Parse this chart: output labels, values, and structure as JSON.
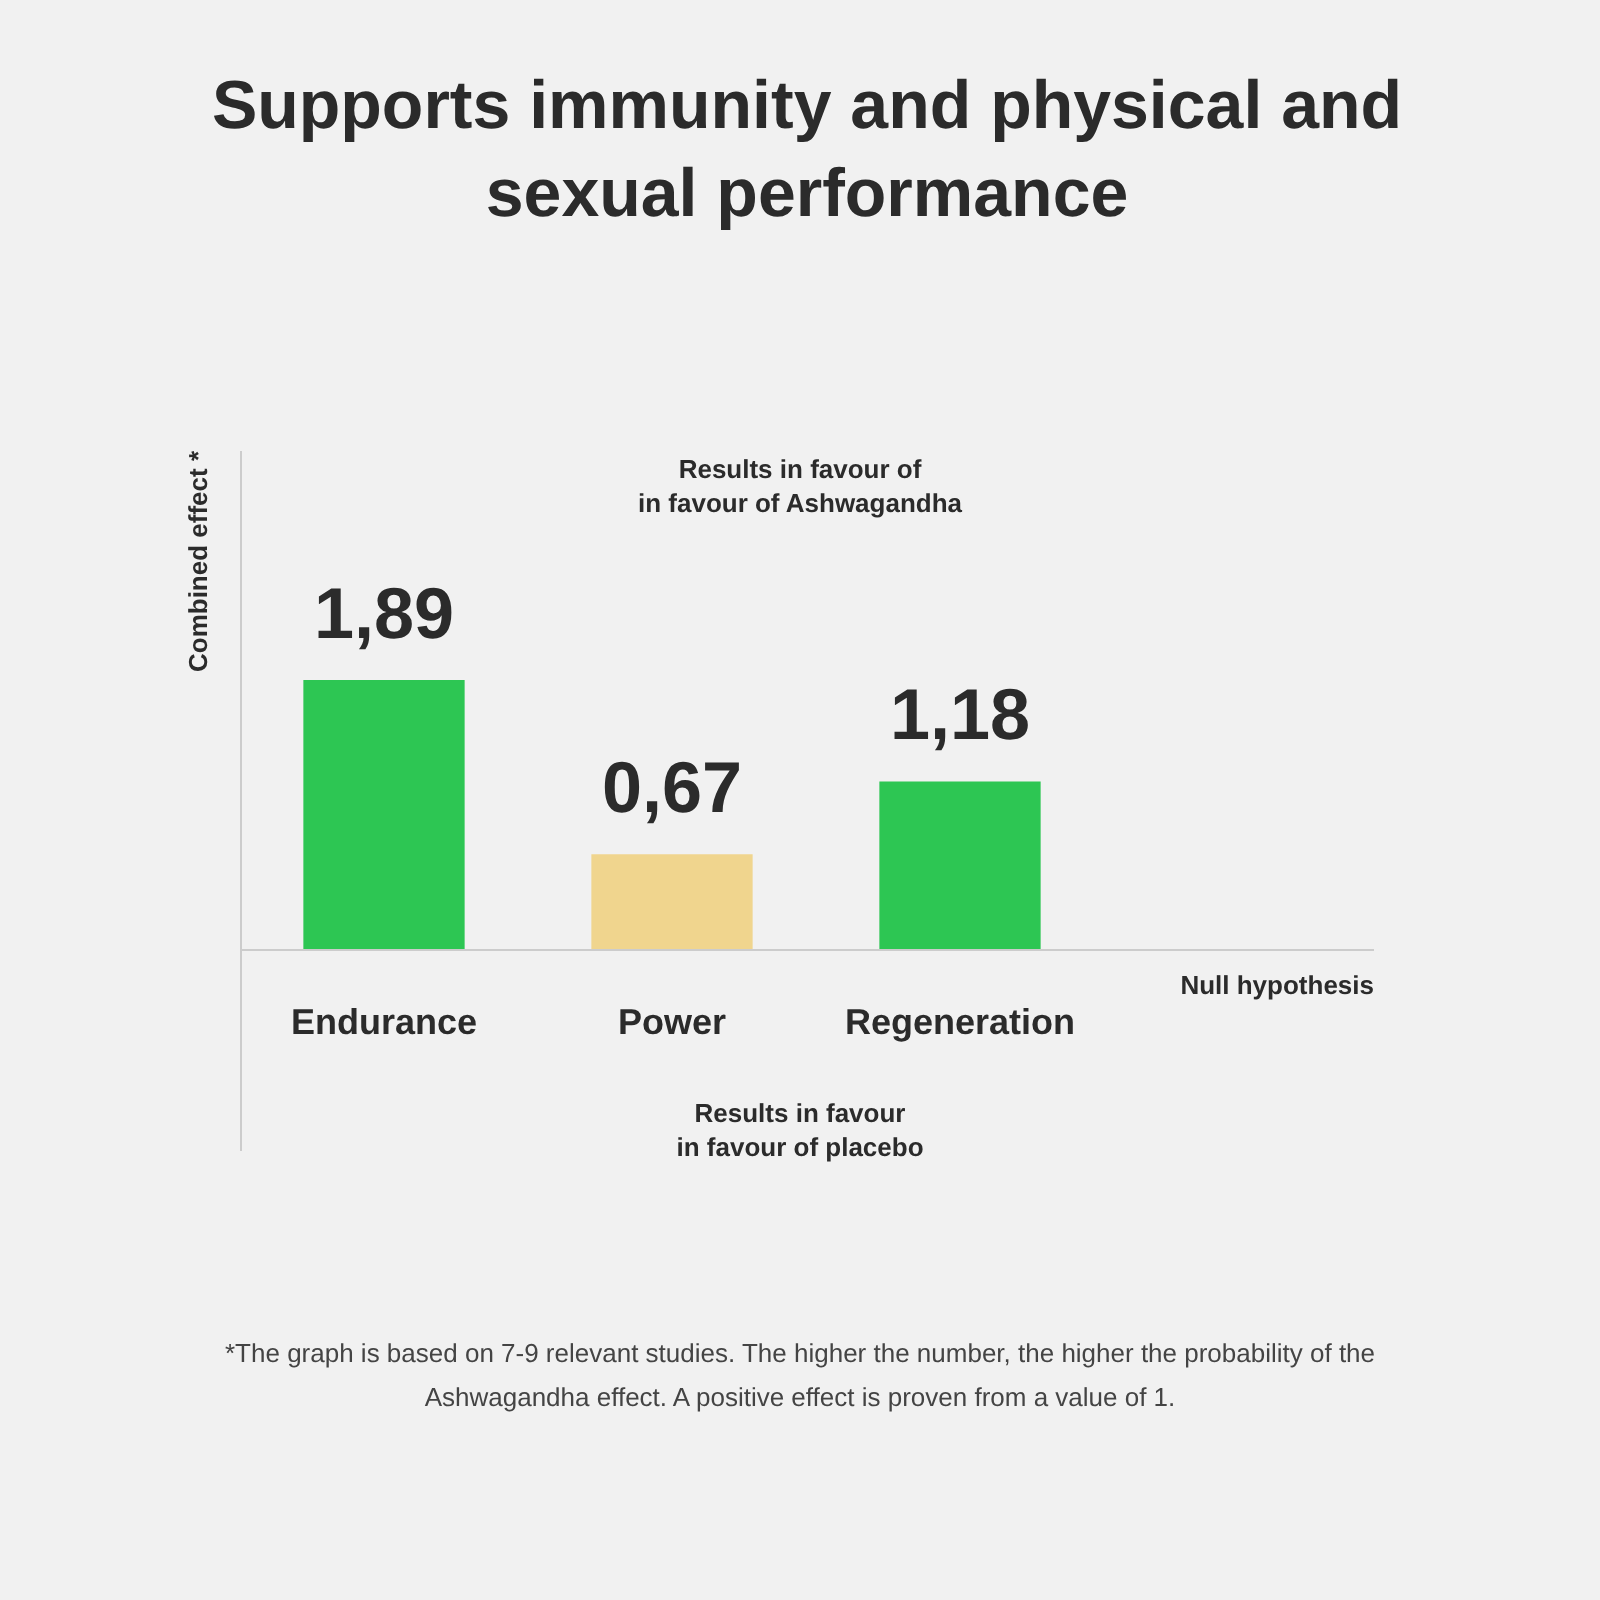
{
  "chart_data": {
    "type": "bar",
    "title": "Supports immunity and physical and\nsexual performance",
    "ylabel": "Combined effect *",
    "categories": [
      "Endurance",
      "Power",
      "Regeneration"
    ],
    "values": [
      1.89,
      0.67,
      1.18
    ],
    "value_labels": [
      "1,89",
      "0,67",
      "1,18"
    ],
    "colors": [
      "#2dc653",
      "#f0d58e",
      "#2dc653"
    ],
    "ylim": [
      -1.4,
      3.5
    ],
    "annotations": [
      "Results in favour of\nin favour of Ashwagandha",
      "Null hypothesis",
      "Results in favour\nin favour of placebo",
      "*The graph is based on 7-9 relevant studies. The higher the number, the higher the probability of the\nAshwagandha effect. A positive effect is proven from a value of 1."
    ]
  }
}
